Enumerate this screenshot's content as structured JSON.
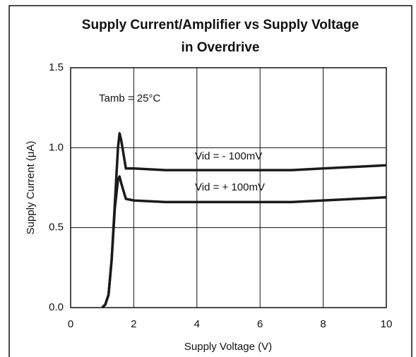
{
  "chart_data": {
    "type": "line",
    "title": [
      "Supply Current/Amplifier vs Supply Voltage",
      "in Overdrive"
    ],
    "x_label": "Supply Voltage (V)",
    "y_label": "Supply Current (μA)",
    "annotations": [
      "Tamb = 25°C",
      "Vid = - 100mV",
      "Vid = + 100mV"
    ],
    "x": [
      1.0,
      1.1,
      1.2,
      1.3,
      1.4,
      1.5,
      1.55,
      1.6,
      1.75,
      2,
      3,
      4,
      5,
      6,
      7,
      8,
      9,
      10
    ],
    "series": [
      {
        "name": "Vid = - 100mV",
        "color": "#1a1a1a",
        "values": [
          0,
          0.02,
          0.08,
          0.3,
          0.65,
          1.0,
          1.09,
          1.05,
          0.87,
          0.87,
          0.86,
          0.86,
          0.86,
          0.86,
          0.86,
          0.87,
          0.88,
          0.89
        ]
      },
      {
        "name": "Vid = + 100mV",
        "color": "#1a1a1a",
        "values": [
          0,
          0.02,
          0.08,
          0.3,
          0.62,
          0.8,
          0.82,
          0.78,
          0.68,
          0.67,
          0.66,
          0.66,
          0.66,
          0.66,
          0.66,
          0.67,
          0.68,
          0.69
        ]
      }
    ],
    "xlim": [
      0,
      10
    ],
    "ylim": [
      0,
      1.5
    ],
    "xticks": [
      0,
      2,
      4,
      6,
      8,
      10
    ],
    "yticks": [
      {
        "value": 0,
        "label": "0.0"
      },
      0.5,
      {
        "value": 1,
        "label": "1.0"
      },
      1.5
    ],
    "grid": true
  }
}
